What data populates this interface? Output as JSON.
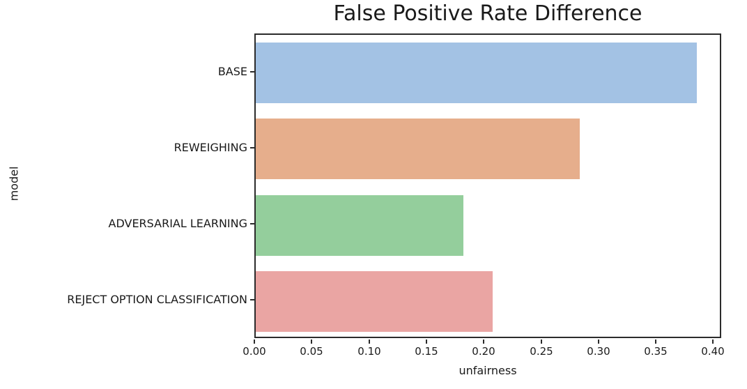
{
  "chart_data": {
    "type": "bar",
    "orientation": "horizontal",
    "title": "False Positive Rate Difference",
    "xlabel": "unfairness",
    "ylabel": "model",
    "categories": [
      "BASE",
      "REWEIGHING",
      "ADVERSARIAL LEARNING",
      "REJECT OPTION CLASSIFICATION"
    ],
    "values": [
      0.387,
      0.284,
      0.182,
      0.208
    ],
    "bar_colors": [
      "#a3c2e4",
      "#e6ae8c",
      "#94ce9c",
      "#eaa5a3"
    ],
    "xlim": [
      0,
      0.407
    ],
    "xticks": [
      0.0,
      0.05,
      0.1,
      0.15,
      0.2,
      0.25,
      0.3,
      0.35,
      0.4
    ],
    "xtick_labels": [
      "0.00",
      "0.05",
      "0.10",
      "0.15",
      "0.20",
      "0.25",
      "0.30",
      "0.35",
      "0.40"
    ],
    "grid": "off",
    "legend": "none",
    "spine_color": "#2b2b2b",
    "text_color": "#1a1a1a"
  }
}
